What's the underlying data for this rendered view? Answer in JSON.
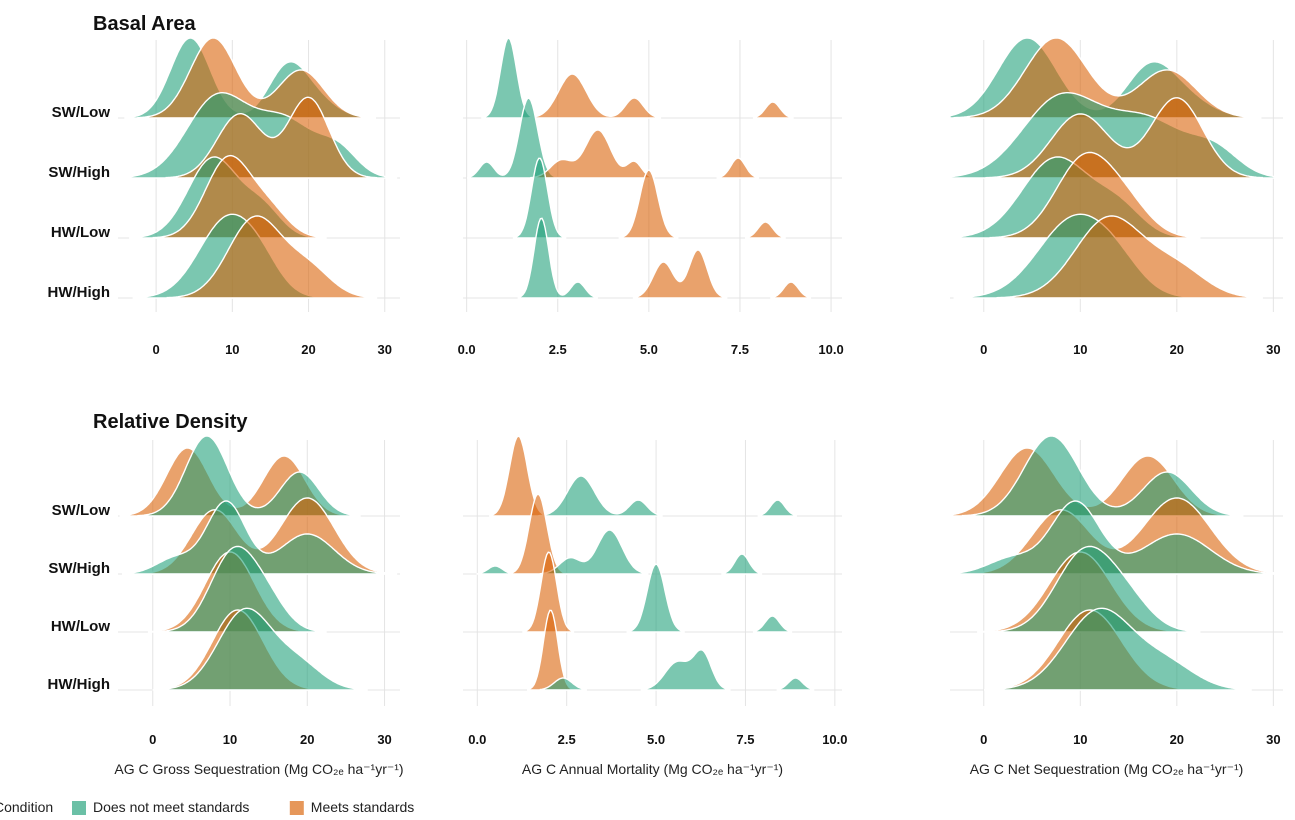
{
  "legend": {
    "title": "Condition",
    "items": [
      {
        "key": "not_meet",
        "label": "Does not meet standards",
        "color": "#1b9e77"
      },
      {
        "key": "meet",
        "label": "Meets standards",
        "color": "#d95f02"
      }
    ]
  },
  "chart_data": [
    {
      "type": "ridgeline",
      "section": "Basal Area",
      "section_title": "Basal Area",
      "column": "gross",
      "xlabel": "",
      "xlim": [
        -5,
        32
      ],
      "xticks": [
        0,
        10,
        20,
        30
      ],
      "xtick_labels": [
        "0",
        "10",
        "20",
        "30"
      ],
      "categories": [
        "SW/Low",
        "SW/High",
        "HW/Low",
        "HW/High"
      ],
      "front_series": "meet",
      "series": {
        "not_meet": [
          [
            {
              "mu": 4.5,
              "sd": 2.6,
              "w": 1.0
            },
            {
              "mu": 17,
              "sd": 2.4,
              "w": 0.5
            },
            {
              "mu": 20,
              "sd": 3,
              "w": 0.3
            }
          ],
          [
            {
              "mu": 8,
              "sd": 4,
              "w": 1.0
            },
            {
              "mu": 17,
              "sd": 4,
              "w": 0.7
            },
            {
              "mu": 24,
              "sd": 2.5,
              "w": 0.3
            }
          ],
          [
            {
              "mu": 7.5,
              "sd": 3.3,
              "w": 1.0
            },
            {
              "mu": 14,
              "sd": 2.5,
              "w": 0.35
            }
          ],
          [
            {
              "mu": 9.5,
              "sd": 3.8,
              "w": 1.0
            },
            {
              "mu": 14,
              "sd": 2.5,
              "w": 0.2
            }
          ]
        ],
        "meet": [
          [
            {
              "mu": 7.5,
              "sd": 3,
              "w": 1.0
            },
            {
              "mu": 19,
              "sd": 3,
              "w": 0.6
            }
          ],
          [
            {
              "mu": 11,
              "sd": 3,
              "w": 0.8
            },
            {
              "mu": 20,
              "sd": 2.7,
              "w": 1.0
            }
          ],
          [
            {
              "mu": 9.5,
              "sd": 3,
              "w": 1.0
            },
            {
              "mu": 15,
              "sd": 2.5,
              "w": 0.3
            }
          ],
          [
            {
              "mu": 13,
              "sd": 3.5,
              "w": 1.0
            },
            {
              "mu": 20,
              "sd": 3,
              "w": 0.35
            }
          ]
        ]
      }
    },
    {
      "type": "ridgeline",
      "section": "Basal Area",
      "section_title": "",
      "column": "mortality",
      "xlabel": "",
      "xlim": [
        -0.1,
        10.3
      ],
      "xticks": [
        0,
        2.5,
        5,
        7.5,
        10
      ],
      "xtick_labels": [
        "0.0",
        "2.5",
        "5.0",
        "7.5",
        "10.0"
      ],
      "categories": [
        "SW/Low",
        "SW/High",
        "HW/Low",
        "HW/High"
      ],
      "front_series": "meet",
      "series": {
        "not_meet": [
          [
            {
              "mu": 1.15,
              "sd": 0.22,
              "w": 1.0
            }
          ],
          [
            {
              "mu": 1.7,
              "sd": 0.25,
              "w": 1.0
            },
            {
              "mu": 0.55,
              "sd": 0.2,
              "w": 0.2
            }
          ],
          [
            {
              "mu": 2.0,
              "sd": 0.22,
              "w": 1.0
            }
          ],
          [
            {
              "mu": 2.05,
              "sd": 0.2,
              "w": 1.0
            },
            {
              "mu": 3.05,
              "sd": 0.2,
              "w": 0.2
            }
          ]
        ],
        "meet": [
          [
            {
              "mu": 2.9,
              "sd": 0.38,
              "w": 0.55
            },
            {
              "mu": 4.6,
              "sd": 0.25,
              "w": 0.25
            },
            {
              "mu": 8.4,
              "sd": 0.2,
              "w": 0.2
            }
          ],
          [
            {
              "mu": 3.6,
              "sd": 0.35,
              "w": 0.6
            },
            {
              "mu": 2.6,
              "sd": 0.3,
              "w": 0.22
            },
            {
              "mu": 4.6,
              "sd": 0.2,
              "w": 0.2
            },
            {
              "mu": 7.45,
              "sd": 0.2,
              "w": 0.25
            }
          ],
          [
            {
              "mu": 5.0,
              "sd": 0.25,
              "w": 0.85
            },
            {
              "mu": 8.2,
              "sd": 0.2,
              "w": 0.2
            }
          ],
          [
            {
              "mu": 5.4,
              "sd": 0.28,
              "w": 0.45
            },
            {
              "mu": 6.35,
              "sd": 0.25,
              "w": 0.6
            },
            {
              "mu": 8.9,
              "sd": 0.2,
              "w": 0.2
            }
          ]
        ]
      }
    },
    {
      "type": "ridgeline",
      "section": "Basal Area",
      "section_title": "",
      "column": "net",
      "xlabel": "",
      "xlim": [
        -3.5,
        31
      ],
      "xticks": [
        0,
        10,
        20,
        30
      ],
      "xtick_labels": [
        "0",
        "10",
        "20",
        "30"
      ],
      "categories": [
        "SW/Low",
        "SW/High",
        "HW/Low",
        "HW/High"
      ],
      "front_series": "meet",
      "series": {
        "not_meet": [
          [
            {
              "mu": 4.5,
              "sd": 3,
              "w": 1.0
            },
            {
              "mu": 17,
              "sd": 2.4,
              "w": 0.5
            },
            {
              "mu": 20,
              "sd": 3,
              "w": 0.3
            }
          ],
          [
            {
              "mu": 8,
              "sd": 4,
              "w": 1.0
            },
            {
              "mu": 17,
              "sd": 4,
              "w": 0.7
            },
            {
              "mu": 24,
              "sd": 2.5,
              "w": 0.3
            }
          ],
          [
            {
              "mu": 7.5,
              "sd": 3.5,
              "w": 1.0
            },
            {
              "mu": 14,
              "sd": 2.5,
              "w": 0.35
            }
          ],
          [
            {
              "mu": 9.5,
              "sd": 3.8,
              "w": 1.0
            },
            {
              "mu": 14,
              "sd": 2.5,
              "w": 0.2
            }
          ]
        ],
        "meet": [
          [
            {
              "mu": 7.5,
              "sd": 3.2,
              "w": 1.0
            },
            {
              "mu": 19,
              "sd": 3,
              "w": 0.6
            }
          ],
          [
            {
              "mu": 10,
              "sd": 3,
              "w": 0.8
            },
            {
              "mu": 20,
              "sd": 2.7,
              "w": 1.0
            }
          ],
          [
            {
              "mu": 10.5,
              "sd": 3,
              "w": 1.0
            },
            {
              "mu": 15,
              "sd": 2.5,
              "w": 0.3
            }
          ],
          [
            {
              "mu": 13,
              "sd": 3.5,
              "w": 1.0
            },
            {
              "mu": 20,
              "sd": 3,
              "w": 0.35
            }
          ]
        ]
      }
    },
    {
      "type": "ridgeline",
      "section": "Relative Density",
      "section_title": "Relative Density",
      "column": "gross",
      "xlabel": "AG C Gross Sequestration (Mg CO₂ₑ ha⁻¹yr⁻¹)",
      "xlim": [
        -4.5,
        32
      ],
      "xticks": [
        0,
        10,
        20,
        30
      ],
      "xtick_labels": [
        "0",
        "10",
        "20",
        "30"
      ],
      "categories": [
        "SW/Low",
        "SW/High",
        "HW/Low",
        "HW/High"
      ],
      "front_series": "not_meet",
      "series": {
        "not_meet": [
          [
            {
              "mu": 7,
              "sd": 2.7,
              "w": 1.0
            },
            {
              "mu": 19,
              "sd": 2.5,
              "w": 0.55
            }
          ],
          [
            {
              "mu": 9.5,
              "sd": 2.5,
              "w": 0.9
            },
            {
              "mu": 3,
              "sd": 2.5,
              "w": 0.2
            },
            {
              "mu": 20,
              "sd": 3.5,
              "w": 0.5
            }
          ],
          [
            {
              "mu": 10.5,
              "sd": 3,
              "w": 1.0
            },
            {
              "mu": 15,
              "sd": 2.5,
              "w": 0.3
            }
          ],
          [
            {
              "mu": 12,
              "sd": 3.5,
              "w": 1.0
            },
            {
              "mu": 19,
              "sd": 3,
              "w": 0.3
            }
          ]
        ],
        "meet": [
          [
            {
              "mu": 4.5,
              "sd": 2.7,
              "w": 0.85
            },
            {
              "mu": 17,
              "sd": 2.7,
              "w": 0.75
            }
          ],
          [
            {
              "mu": 8,
              "sd": 3,
              "w": 0.8
            },
            {
              "mu": 20,
              "sd": 3.5,
              "w": 0.95
            }
          ],
          [
            {
              "mu": 10,
              "sd": 3.2,
              "w": 1.0
            }
          ],
          [
            {
              "mu": 11,
              "sd": 3.3,
              "w": 1.0
            }
          ]
        ]
      }
    },
    {
      "type": "ridgeline",
      "section": "Relative Density",
      "section_title": "",
      "column": "mortality",
      "xlabel": "AG C Annual Mortality (Mg CO₂ₑ ha⁻¹yr⁻¹)",
      "xlim": [
        -0.4,
        10.2
      ],
      "xticks": [
        0,
        2.5,
        5,
        7.5,
        10
      ],
      "xtick_labels": [
        "0.0",
        "2.5",
        "5.0",
        "7.5",
        "10.0"
      ],
      "categories": [
        "SW/Low",
        "SW/High",
        "HW/Low",
        "HW/High"
      ],
      "front_series": "not_meet",
      "series": {
        "not_meet": [
          [
            {
              "mu": 2.9,
              "sd": 0.38,
              "w": 0.5
            },
            {
              "mu": 4.5,
              "sd": 0.25,
              "w": 0.2
            },
            {
              "mu": 8.4,
              "sd": 0.2,
              "w": 0.2
            }
          ],
          [
            {
              "mu": 3.7,
              "sd": 0.35,
              "w": 0.55
            },
            {
              "mu": 2.6,
              "sd": 0.3,
              "w": 0.2
            },
            {
              "mu": 0.5,
              "sd": 0.2,
              "w": 0.1
            },
            {
              "mu": 7.4,
              "sd": 0.2,
              "w": 0.25
            }
          ],
          [
            {
              "mu": 5.0,
              "sd": 0.25,
              "w": 0.85
            },
            {
              "mu": 8.25,
              "sd": 0.2,
              "w": 0.2
            }
          ],
          [
            {
              "mu": 5.6,
              "sd": 0.35,
              "w": 0.35
            },
            {
              "mu": 6.3,
              "sd": 0.25,
              "w": 0.45
            },
            {
              "mu": 2.4,
              "sd": 0.25,
              "w": 0.15
            },
            {
              "mu": 8.9,
              "sd": 0.2,
              "w": 0.15
            }
          ]
        ],
        "meet": [
          [
            {
              "mu": 1.15,
              "sd": 0.25,
              "w": 1.0
            }
          ],
          [
            {
              "mu": 1.7,
              "sd": 0.25,
              "w": 1.0
            }
          ],
          [
            {
              "mu": 2.0,
              "sd": 0.22,
              "w": 1.0
            }
          ],
          [
            {
              "mu": 2.05,
              "sd": 0.2,
              "w": 1.0
            }
          ]
        ]
      }
    },
    {
      "type": "ridgeline",
      "section": "Relative Density",
      "section_title": "",
      "column": "net",
      "xlabel": "AG C Net Sequestration (Mg CO₂ₑ ha⁻¹yr⁻¹)",
      "xlim": [
        -3.5,
        31
      ],
      "xticks": [
        0,
        10,
        20,
        30
      ],
      "xtick_labels": [
        "0",
        "10",
        "20",
        "30"
      ],
      "categories": [
        "SW/Low",
        "SW/High",
        "HW/Low",
        "HW/High"
      ],
      "front_series": "not_meet",
      "series": {
        "not_meet": [
          [
            {
              "mu": 7,
              "sd": 2.8,
              "w": 1.0
            },
            {
              "mu": 19,
              "sd": 2.5,
              "w": 0.55
            }
          ],
          [
            {
              "mu": 9.5,
              "sd": 2.5,
              "w": 0.9
            },
            {
              "mu": 3,
              "sd": 2.5,
              "w": 0.2
            },
            {
              "mu": 20,
              "sd": 3.5,
              "w": 0.5
            }
          ],
          [
            {
              "mu": 10.5,
              "sd": 3,
              "w": 1.0
            },
            {
              "mu": 15,
              "sd": 2.5,
              "w": 0.3
            }
          ],
          [
            {
              "mu": 12,
              "sd": 3.5,
              "w": 1.0
            },
            {
              "mu": 19,
              "sd": 3,
              "w": 0.3
            }
          ]
        ],
        "meet": [
          [
            {
              "mu": 4.5,
              "sd": 2.8,
              "w": 0.85
            },
            {
              "mu": 17,
              "sd": 2.7,
              "w": 0.75
            }
          ],
          [
            {
              "mu": 8,
              "sd": 3,
              "w": 0.8
            },
            {
              "mu": 20,
              "sd": 3.5,
              "w": 0.95
            }
          ],
          [
            {
              "mu": 10,
              "sd": 3.2,
              "w": 1.0
            }
          ],
          [
            {
              "mu": 11,
              "sd": 3.3,
              "w": 1.0
            }
          ]
        ]
      }
    }
  ]
}
